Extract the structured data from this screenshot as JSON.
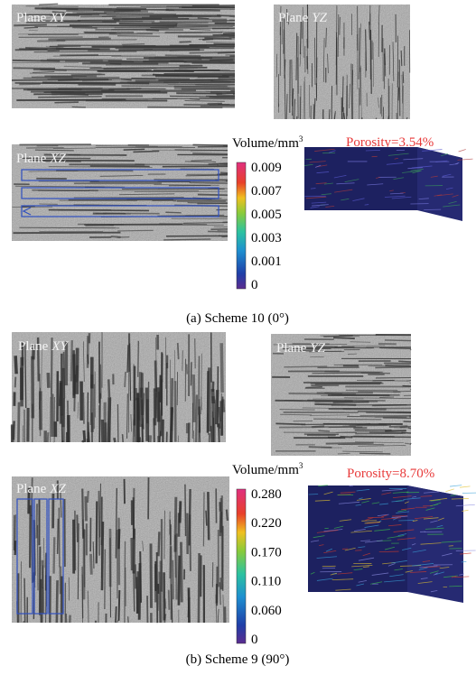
{
  "panels": [
    {
      "planes": [
        {
          "prefix": "Plane",
          "axes": "XY"
        },
        {
          "prefix": "Plane",
          "axes": "YZ"
        },
        {
          "prefix": "Plane",
          "axes": "XZ"
        }
      ],
      "colorbar": {
        "unit": "Volume/mm",
        "exponent": "3",
        "ticks": [
          "0.009",
          "0.007",
          "0.005",
          "0.003",
          "0.001",
          "0"
        ]
      },
      "porosity": "Porosity=3.54%",
      "caption": "(a) Scheme 10 (0°)"
    },
    {
      "planes": [
        {
          "prefix": "Plane",
          "axes": "XY"
        },
        {
          "prefix": "Plane",
          "axes": "YZ"
        },
        {
          "prefix": "Plane",
          "axes": "XZ"
        }
      ],
      "colorbar": {
        "unit": "Volume/mm",
        "exponent": "3",
        "ticks": [
          "0.280",
          "0.220",
          "0.170",
          "0.110",
          "0.060",
          "0"
        ]
      },
      "porosity": "Porosity=8.70%",
      "caption": "(b) Scheme 9 (90°)"
    }
  ]
}
